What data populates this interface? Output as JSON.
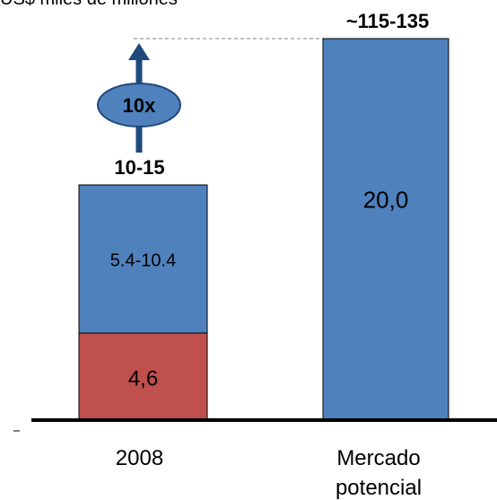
{
  "chart_data": {
    "type": "bar",
    "unit_label": "US$ miles de millones",
    "categories": [
      "2008",
      "Mercado potencial"
    ],
    "category_lines": [
      [
        "2008"
      ],
      [
        "Mercado",
        "potencial"
      ]
    ],
    "stacks": [
      {
        "category": "2008",
        "total_label": "10-15",
        "segments": [
          {
            "value": 4.6,
            "label": "4,6",
            "color": "#C0504D"
          },
          {
            "value": 7.9,
            "label": "5.4-10.4",
            "color": "#4F81BD"
          }
        ]
      },
      {
        "category": "Mercado potencial",
        "total_label": "~115-135",
        "segments": [
          {
            "value": 20.0,
            "label": "20,0",
            "color": "#4F81BD"
          }
        ]
      }
    ],
    "growth_annotation": {
      "label": "10x",
      "color": "#1F497D",
      "fill": "#4F81BD"
    },
    "reference_line": "dashed, from top of 2008 arrow to top of Mercado potencial bar"
  }
}
